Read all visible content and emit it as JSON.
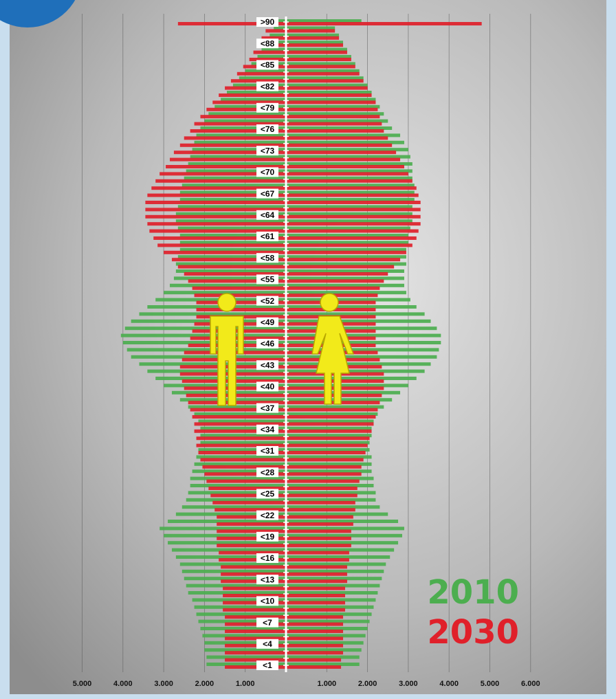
{
  "chart_data": {
    "type": "pyramid",
    "categories": [
      "<1",
      null,
      null,
      "<4",
      null,
      null,
      "<7",
      null,
      null,
      "<10",
      null,
      null,
      "<13",
      null,
      null,
      "<16",
      null,
      null,
      "<19",
      null,
      null,
      "<22",
      null,
      null,
      "<25",
      null,
      null,
      "<28",
      null,
      null,
      "<31",
      null,
      null,
      "<34",
      null,
      null,
      "<37",
      null,
      null,
      "<40",
      null,
      null,
      "<43",
      null,
      null,
      "<46",
      null,
      null,
      "<49",
      null,
      null,
      "<52",
      null,
      null,
      "<55",
      null,
      null,
      "<58",
      null,
      null,
      "<61",
      null,
      null,
      "<64",
      null,
      null,
      "<67",
      null,
      null,
      "<70",
      null,
      null,
      "<73",
      null,
      null,
      "<76",
      null,
      null,
      "<79",
      null,
      null,
      "<82",
      null,
      null,
      "<85",
      null,
      null,
      "<88",
      null,
      null,
      ">90"
    ],
    "series": [
      {
        "name": "2010",
        "color": "#4cae4f",
        "male": [
          1950,
          1950,
          2000,
          2000,
          2050,
          2100,
          2150,
          2200,
          2250,
          2300,
          2400,
          2450,
          2500,
          2550,
          2600,
          2700,
          2800,
          2900,
          3000,
          3100,
          2900,
          2700,
          2550,
          2450,
          2400,
          2350,
          2350,
          2300,
          2250,
          2200,
          2150,
          2100,
          2100,
          2100,
          2150,
          2250,
          2400,
          2600,
          2800,
          3000,
          3200,
          3400,
          3600,
          3800,
          3900,
          4000,
          4050,
          3950,
          3800,
          3600,
          3400,
          3200,
          3000,
          2850,
          2750,
          2700,
          2700,
          2650,
          2600,
          2600,
          2600,
          2650,
          2700,
          2700,
          2650,
          2600,
          2600,
          2550,
          2500,
          2450,
          2400,
          2350,
          2300,
          2250,
          2200,
          2100,
          2000,
          1900,
          1750,
          1600,
          1450,
          1300,
          1150,
          1000,
          850,
          700,
          600,
          500,
          400,
          300,
          600
        ],
        "female": [
          1800,
          1800,
          1850,
          1900,
          1950,
          2000,
          2050,
          2100,
          2150,
          2200,
          2250,
          2300,
          2350,
          2400,
          2450,
          2550,
          2650,
          2750,
          2850,
          2900,
          2750,
          2500,
          2300,
          2200,
          2200,
          2150,
          2150,
          2100,
          2100,
          2100,
          2050,
          2050,
          2100,
          2100,
          2150,
          2250,
          2400,
          2600,
          2800,
          3000,
          3200,
          3400,
          3550,
          3700,
          3750,
          3800,
          3800,
          3700,
          3550,
          3400,
          3200,
          3050,
          2950,
          2900,
          2900,
          2900,
          2950,
          2950,
          2950,
          3000,
          3000,
          3050,
          3100,
          3100,
          3100,
          3150,
          3150,
          3150,
          3100,
          3100,
          3100,
          3050,
          3000,
          2900,
          2800,
          2600,
          2500,
          2400,
          2300,
          2200,
          2100,
          2000,
          1900,
          1800,
          1700,
          1600,
          1500,
          1400,
          1300,
          1200,
          1850
        ]
      },
      {
        "name": "2030",
        "color": "#e0202a",
        "male": [
          1500,
          1500,
          1500,
          1500,
          1500,
          1500,
          1500,
          1500,
          1550,
          1550,
          1550,
          1550,
          1600,
          1600,
          1600,
          1650,
          1650,
          1700,
          1700,
          1700,
          1700,
          1700,
          1750,
          1800,
          1850,
          1900,
          1950,
          2000,
          2050,
          2100,
          2150,
          2200,
          2200,
          2250,
          2250,
          2300,
          2350,
          2400,
          2450,
          2500,
          2550,
          2600,
          2600,
          2550,
          2500,
          2400,
          2350,
          2300,
          2250,
          2200,
          2200,
          2200,
          2250,
          2300,
          2400,
          2500,
          2650,
          2800,
          3000,
          3150,
          3250,
          3350,
          3400,
          3450,
          3450,
          3450,
          3400,
          3300,
          3200,
          3100,
          2950,
          2850,
          2750,
          2600,
          2500,
          2350,
          2250,
          2100,
          1950,
          1800,
          1650,
          1500,
          1350,
          1200,
          1050,
          900,
          800,
          700,
          600,
          500,
          2650
        ],
        "female": [
          1350,
          1350,
          1400,
          1400,
          1400,
          1400,
          1400,
          1400,
          1450,
          1450,
          1450,
          1450,
          1500,
          1500,
          1500,
          1550,
          1550,
          1600,
          1600,
          1600,
          1650,
          1650,
          1700,
          1700,
          1750,
          1750,
          1800,
          1850,
          1850,
          1900,
          1950,
          2000,
          2050,
          2100,
          2150,
          2200,
          2250,
          2300,
          2350,
          2400,
          2400,
          2400,
          2350,
          2300,
          2250,
          2200,
          2200,
          2200,
          2200,
          2200,
          2200,
          2200,
          2250,
          2300,
          2400,
          2500,
          2650,
          2800,
          2950,
          3100,
          3200,
          3250,
          3300,
          3300,
          3300,
          3300,
          3250,
          3200,
          3100,
          3000,
          2900,
          2800,
          2700,
          2600,
          2500,
          2400,
          2350,
          2300,
          2250,
          2200,
          2100,
          2000,
          1900,
          1800,
          1700,
          1600,
          1500,
          1400,
          1300,
          1200,
          4800
        ]
      }
    ],
    "xlim": [
      0,
      6500
    ],
    "xticks_left": [
      {
        "value": 5000,
        "label": "5.000"
      },
      {
        "value": 4000,
        "label": "4.000"
      },
      {
        "value": 3000,
        "label": "3.000"
      },
      {
        "value": 2000,
        "label": "2.000"
      },
      {
        "value": 1000,
        "label": "1.000"
      }
    ],
    "xticks_right": [
      {
        "value": 1000,
        "label": "1.000"
      },
      {
        "value": 2000,
        "label": "2.000"
      },
      {
        "value": 3000,
        "label": "3.000"
      },
      {
        "value": 4000,
        "label": "4.000"
      },
      {
        "value": 5000,
        "label": "5.000"
      },
      {
        "value": 6000,
        "label": "6.000"
      }
    ],
    "grid": true
  }
}
